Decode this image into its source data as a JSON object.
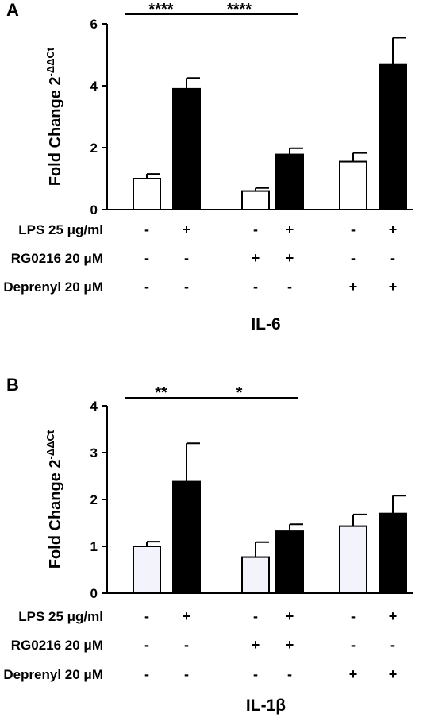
{
  "chart_data": [
    {
      "panel": "A",
      "type": "bar",
      "title": "IL-6",
      "ylabel_main": "Fold Change 2",
      "ylabel_sup": "-ΔΔCt",
      "ylim": [
        0,
        6
      ],
      "yticks": [
        "0",
        "2",
        "4",
        "6"
      ],
      "bars": [
        {
          "value": 1.0,
          "error": 0.15,
          "fill": "#ffffff"
        },
        {
          "value": 3.9,
          "error": 0.35,
          "fill": "#000000"
        },
        {
          "value": 0.6,
          "error": 0.1,
          "fill": "#ffffff"
        },
        {
          "value": 1.78,
          "error": 0.2,
          "fill": "#000000"
        },
        {
          "value": 1.55,
          "error": 0.28,
          "fill": "#ffffff"
        },
        {
          "value": 4.7,
          "error": 0.85,
          "fill": "#000000"
        }
      ],
      "significance": [
        {
          "label": "****",
          "from": 0,
          "to": 1
        },
        {
          "label": "****",
          "from": 1,
          "to": 3
        }
      ],
      "conditions": [
        {
          "label": "LPS 25 μg/ml",
          "signs": [
            "-",
            "+",
            "-",
            "+",
            "-",
            "+"
          ]
        },
        {
          "label": "RG0216 20 μM",
          "signs": [
            "-",
            "-",
            "+",
            "+",
            "-",
            "-"
          ]
        },
        {
          "label": "Deprenyl 20 μM",
          "signs": [
            "-",
            "-",
            "-",
            "-",
            "+",
            "+"
          ]
        }
      ]
    },
    {
      "panel": "B",
      "type": "bar",
      "title": "IL-1β",
      "ylabel_main": "Fold Change 2",
      "ylabel_sup": "-ΔΔCt",
      "ylim": [
        0,
        4
      ],
      "yticks": [
        "0",
        "1",
        "2",
        "3",
        "4"
      ],
      "bars": [
        {
          "value": 1.0,
          "error": 0.1,
          "fill": "#f3f4fb"
        },
        {
          "value": 2.38,
          "error": 0.82,
          "fill": "#000000"
        },
        {
          "value": 0.77,
          "error": 0.32,
          "fill": "#f3f4fb"
        },
        {
          "value": 1.32,
          "error": 0.15,
          "fill": "#000000"
        },
        {
          "value": 1.43,
          "error": 0.25,
          "fill": "#f3f4fb"
        },
        {
          "value": 1.7,
          "error": 0.38,
          "fill": "#000000"
        }
      ],
      "significance": [
        {
          "label": "**",
          "from": 0,
          "to": 1
        },
        {
          "label": "*",
          "from": 1,
          "to": 3
        }
      ],
      "conditions": [
        {
          "label": "LPS 25 μg/ml",
          "signs": [
            "-",
            "+",
            "-",
            "+",
            "-",
            "+"
          ]
        },
        {
          "label": "RG0216 20 μM",
          "signs": [
            "-",
            "-",
            "+",
            "+",
            "-",
            "-"
          ]
        },
        {
          "label": "Deprenyl 20 μM",
          "signs": [
            "-",
            "-",
            "-",
            "-",
            "+",
            "+"
          ]
        }
      ]
    }
  ]
}
